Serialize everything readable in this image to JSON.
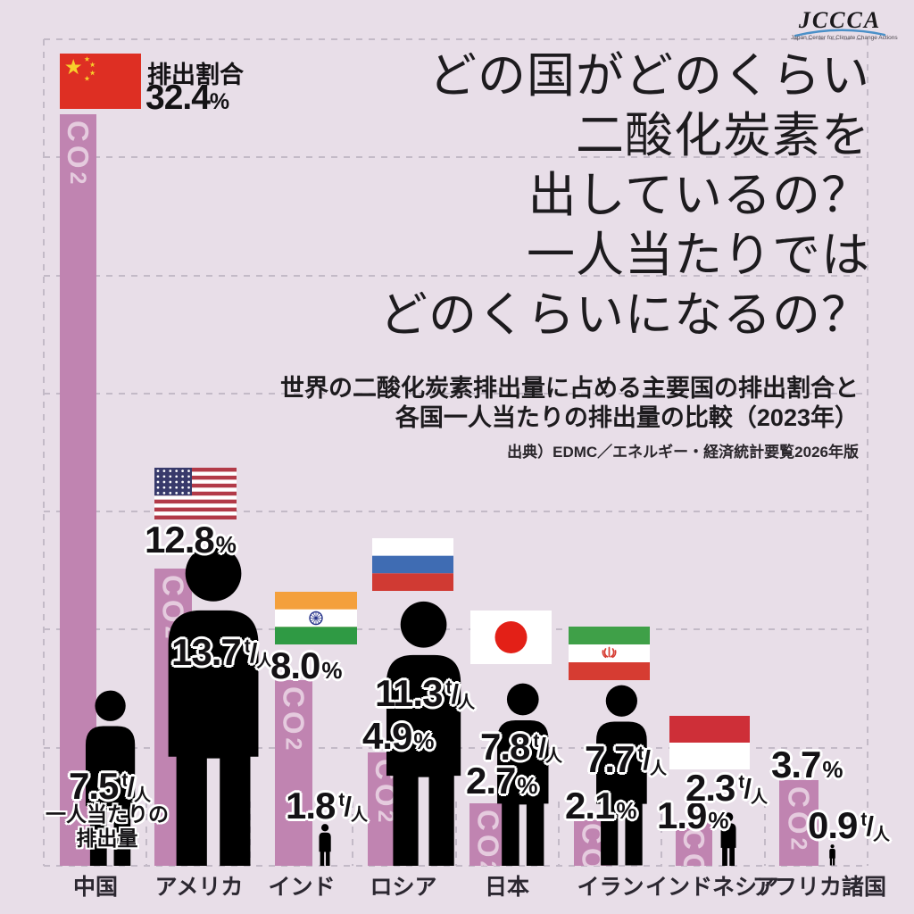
{
  "page": {
    "background": "#e8dee8"
  },
  "logo": {
    "text": "JCCCA",
    "subtext": "Japan Center for Climate Change Actions",
    "arc_color": "#4a90c8"
  },
  "title": {
    "lines": [
      "どの国がどのくらい",
      "二酸化炭素を",
      "出しているの？",
      "一人当たりでは",
      "どのくらいになるの？"
    ]
  },
  "subtitle": {
    "lines": [
      "世界の二酸化炭素排出量に占める主要国の排出割合と",
      "各国一人当たりの排出量の比較（2023年）"
    ]
  },
  "source": "出典）EDMC／エネルギー・経済統計要覧2026年版",
  "legend": {
    "share_label": "排出割合",
    "per_capita_caption_lines": [
      "一人当たりの",
      "排出量"
    ]
  },
  "bar": {
    "text": "CO",
    "sub": "2",
    "color": "#c084b1"
  },
  "person_color": "#8e5b95",
  "grid_color": "#c3bac7",
  "unit": {
    "percent": "%",
    "tonnes": "t",
    "slash": "/",
    "per_person": "人"
  },
  "countries": [
    {
      "id": "china",
      "name": "中国",
      "share_display": "32.4",
      "per_capita_display": "7.5",
      "share_pct": 32.4,
      "per_capita_t": 7.5,
      "flag_colors": {
        "field": "#de2f23",
        "star": "#f7d02b"
      }
    },
    {
      "id": "usa",
      "name": "アメリカ",
      "share_display": "12.8",
      "per_capita_display": "13.7",
      "share_pct": 12.8,
      "per_capita_t": 13.7,
      "flag_colors": {
        "stripe_red": "#b23a48",
        "stripe_white": "#ffffff",
        "canton": "#383a6b",
        "stars": "#ffffff"
      }
    },
    {
      "id": "india",
      "name": "インド",
      "share_display": "8.0",
      "per_capita_display": "1.8",
      "share_pct": 8.0,
      "per_capita_t": 1.8,
      "flag_colors": {
        "saffron": "#f4a03c",
        "white": "#ffffff",
        "green": "#2f9a44",
        "chakra": "#27348b"
      }
    },
    {
      "id": "russia",
      "name": "ロシア",
      "share_display": "4.9",
      "per_capita_display": "11.3",
      "share_pct": 4.9,
      "per_capita_t": 11.3,
      "flag_colors": {
        "white": "#ffffff",
        "blue": "#3f6cb3",
        "red": "#d03a33"
      }
    },
    {
      "id": "japan",
      "name": "日本",
      "share_display": "2.7",
      "per_capita_display": "7.8",
      "share_pct": 2.7,
      "per_capita_t": 7.8,
      "flag_colors": {
        "white": "#ffffff",
        "disc": "#e32017"
      }
    },
    {
      "id": "iran",
      "name": "イラン",
      "share_display": "2.1",
      "per_capita_display": "7.7",
      "share_pct": 2.1,
      "per_capita_t": 7.7,
      "flag_colors": {
        "green": "#3fa048",
        "white": "#ffffff",
        "red": "#d63c32"
      }
    },
    {
      "id": "indonesia",
      "name": "インドネシア",
      "share_display": "1.9",
      "per_capita_display": "2.3",
      "share_pct": 1.9,
      "per_capita_t": 2.3,
      "flag_colors": {
        "red": "#ce2f38",
        "white": "#ffffff"
      }
    },
    {
      "id": "africa",
      "name": "アフリカ諸国",
      "share_display": "3.7",
      "per_capita_display": "0.9",
      "share_pct": 3.7,
      "per_capita_t": 0.9,
      "flag_colors": {}
    }
  ],
  "chart_data": {
    "type": "bar",
    "title": "どの国がどのくらい二酸化炭素を出しているの？一人当たりではどのくらいになるの？",
    "subtitle": "世界の二酸化炭素排出量に占める主要国の排出割合と各国一人当たりの排出量の比較（2023年）",
    "source": "出典）EDMC／エネルギー・経済統計要覧2026年版",
    "categories": [
      "中国",
      "アメリカ",
      "インド",
      "ロシア",
      "日本",
      "イラン",
      "インドネシア",
      "アフリカ諸国"
    ],
    "series": [
      {
        "name": "排出割合",
        "unit": "%",
        "values": [
          32.4,
          12.8,
          8.0,
          4.9,
          2.7,
          2.1,
          1.9,
          3.7
        ]
      },
      {
        "name": "一人当たりの排出量",
        "unit": "t/人",
        "values": [
          7.5,
          13.7,
          1.8,
          11.3,
          7.8,
          7.7,
          2.3,
          0.9
        ]
      }
    ],
    "ylim_share_pct": [
      0,
      35
    ],
    "gridlines": "horizontal dashed every 5%",
    "legend_position": "none"
  }
}
